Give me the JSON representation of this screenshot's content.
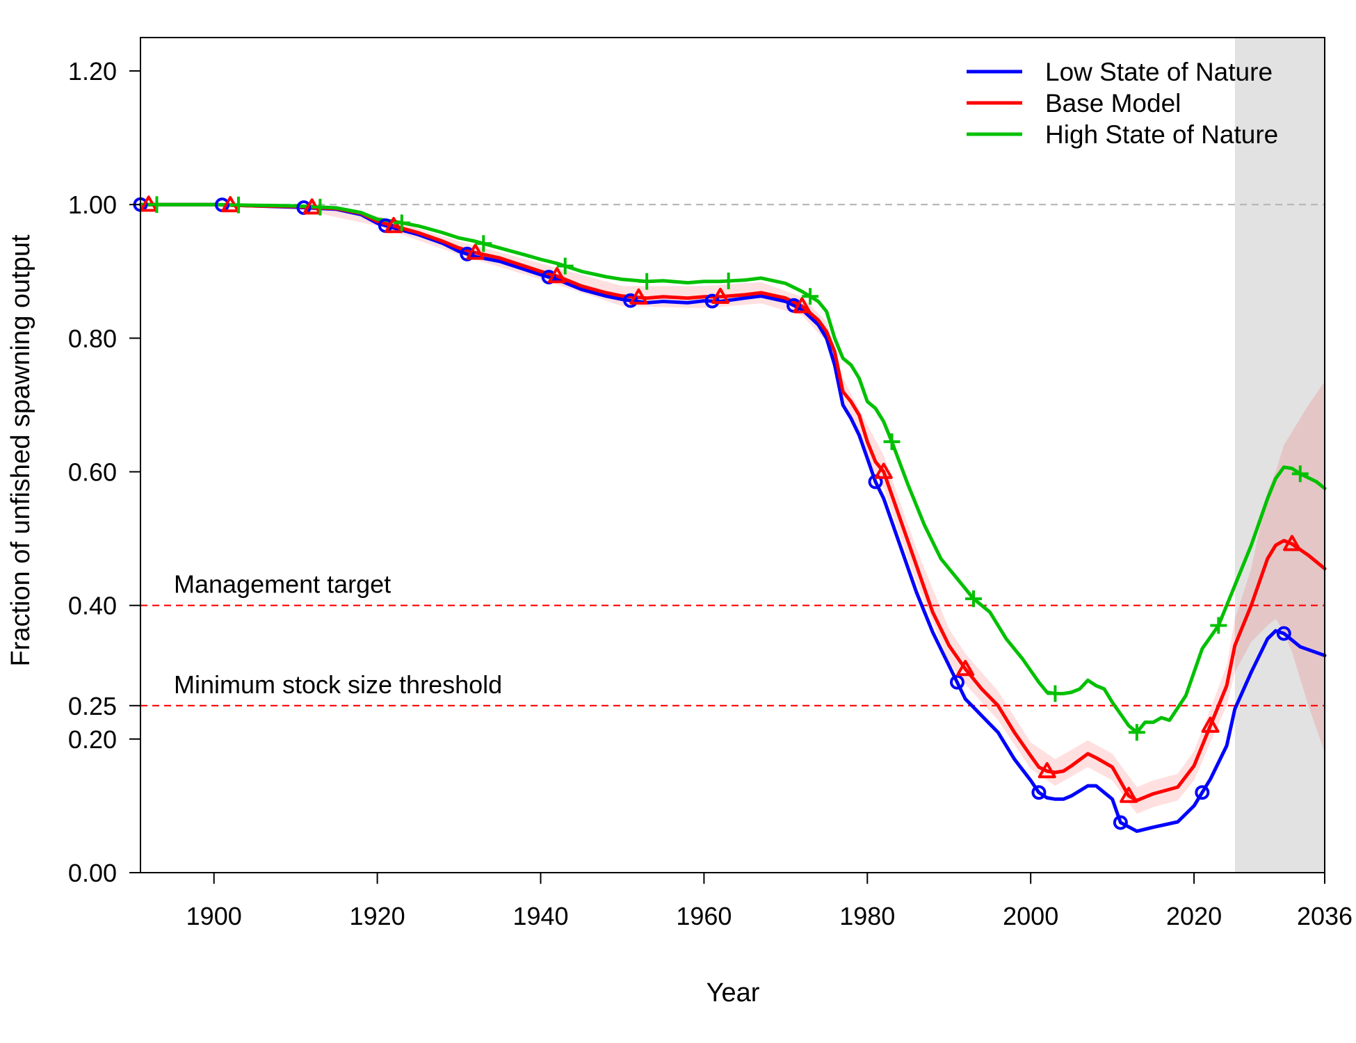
{
  "chart_data": {
    "type": "line",
    "title": "",
    "xlabel": "Year",
    "ylabel": "Fraction of unfished spawning output",
    "xlim": [
      1891,
      2036
    ],
    "ylim": [
      0,
      1.25
    ],
    "x_ticks": [
      {
        "value": 1900,
        "label": "1900"
      },
      {
        "value": 1920,
        "label": "1920"
      },
      {
        "value": 1940,
        "label": "1940"
      },
      {
        "value": 1960,
        "label": "1960"
      },
      {
        "value": 1980,
        "label": "1980"
      },
      {
        "value": 2000,
        "label": "2000"
      },
      {
        "value": 2020,
        "label": "2020"
      },
      {
        "value": 2036,
        "label": "2036"
      }
    ],
    "y_ticks": [
      {
        "value": 0.0,
        "label": "0.00"
      },
      {
        "value": 0.2,
        "label": "0.20"
      },
      {
        "value": 0.25,
        "label": "0.25"
      },
      {
        "value": 0.4,
        "label": "0.40"
      },
      {
        "value": 0.6,
        "label": "0.60"
      },
      {
        "value": 0.8,
        "label": "0.80"
      },
      {
        "value": 1.0,
        "label": "1.00"
      },
      {
        "value": 1.2,
        "label": "1.20"
      }
    ],
    "grid": false,
    "legend_position": "top-right",
    "forecast_shading": {
      "from": 2025,
      "to": 2036,
      "color": "#e2e2e2"
    },
    "reference_lines": [
      {
        "value": 1.0,
        "label": "",
        "color": "#b5b5b5"
      },
      {
        "value": 0.4,
        "label": "Management target",
        "color": "#ff0000"
      },
      {
        "value": 0.25,
        "label": "Minimum stock size threshold",
        "color": "#ff0000"
      }
    ],
    "series": [
      {
        "name": "Low State of Nature",
        "color": "#0000ff",
        "marker": "circle",
        "marker_years": [
          1891,
          1901,
          1911,
          1921,
          1931,
          1941,
          1951,
          1961,
          1971,
          1981,
          1991,
          2001,
          2011,
          2021,
          2031
        ],
        "points": [
          [
            1891,
            1.0
          ],
          [
            1895,
            1.0
          ],
          [
            1900,
            1.0
          ],
          [
            1905,
            0.998
          ],
          [
            1910,
            0.996
          ],
          [
            1915,
            0.993
          ],
          [
            1918,
            0.985
          ],
          [
            1920,
            0.972
          ],
          [
            1922,
            0.965
          ],
          [
            1925,
            0.955
          ],
          [
            1928,
            0.942
          ],
          [
            1930,
            0.93
          ],
          [
            1932,
            0.922
          ],
          [
            1935,
            0.915
          ],
          [
            1938,
            0.903
          ],
          [
            1940,
            0.895
          ],
          [
            1942,
            0.888
          ],
          [
            1945,
            0.873
          ],
          [
            1948,
            0.863
          ],
          [
            1950,
            0.858
          ],
          [
            1953,
            0.853
          ],
          [
            1955,
            0.855
          ],
          [
            1958,
            0.853
          ],
          [
            1960,
            0.856
          ],
          [
            1962,
            0.855
          ],
          [
            1965,
            0.86
          ],
          [
            1967,
            0.863
          ],
          [
            1970,
            0.855
          ],
          [
            1972,
            0.843
          ],
          [
            1974,
            0.82
          ],
          [
            1975,
            0.8
          ],
          [
            1976,
            0.76
          ],
          [
            1977,
            0.7
          ],
          [
            1978,
            0.68
          ],
          [
            1979,
            0.655
          ],
          [
            1980,
            0.62
          ],
          [
            1981,
            0.585
          ],
          [
            1982,
            0.56
          ],
          [
            1984,
            0.49
          ],
          [
            1986,
            0.42
          ],
          [
            1988,
            0.36
          ],
          [
            1990,
            0.31
          ],
          [
            1992,
            0.26
          ],
          [
            1994,
            0.235
          ],
          [
            1996,
            0.21
          ],
          [
            1998,
            0.17
          ],
          [
            2000,
            0.138
          ],
          [
            2001,
            0.12
          ],
          [
            2002,
            0.112
          ],
          [
            2003,
            0.11
          ],
          [
            2004,
            0.11
          ],
          [
            2005,
            0.115
          ],
          [
            2007,
            0.13
          ],
          [
            2008,
            0.13
          ],
          [
            2010,
            0.11
          ],
          [
            2011,
            0.075
          ],
          [
            2013,
            0.062
          ],
          [
            2015,
            0.068
          ],
          [
            2018,
            0.076
          ],
          [
            2020,
            0.1
          ],
          [
            2022,
            0.14
          ],
          [
            2024,
            0.19
          ],
          [
            2025,
            0.245
          ],
          [
            2027,
            0.3
          ],
          [
            2029,
            0.35
          ],
          [
            2030,
            0.362
          ],
          [
            2031,
            0.358
          ],
          [
            2033,
            0.338
          ],
          [
            2036,
            0.325
          ]
        ]
      },
      {
        "name": "Base Model",
        "color": "#ff0000",
        "marker": "triangle",
        "marker_years": [
          1892,
          1902,
          1912,
          1922,
          1932,
          1942,
          1952,
          1962,
          1972,
          1982,
          1992,
          2002,
          2012,
          2022,
          2032
        ],
        "points": [
          [
            1891,
            1.0
          ],
          [
            1895,
            1.0
          ],
          [
            1900,
            1.0
          ],
          [
            1905,
            0.998
          ],
          [
            1910,
            0.997
          ],
          [
            1915,
            0.994
          ],
          [
            1918,
            0.987
          ],
          [
            1920,
            0.975
          ],
          [
            1922,
            0.968
          ],
          [
            1925,
            0.958
          ],
          [
            1928,
            0.945
          ],
          [
            1930,
            0.935
          ],
          [
            1932,
            0.928
          ],
          [
            1935,
            0.92
          ],
          [
            1938,
            0.908
          ],
          [
            1940,
            0.9
          ],
          [
            1942,
            0.893
          ],
          [
            1945,
            0.878
          ],
          [
            1948,
            0.868
          ],
          [
            1950,
            0.863
          ],
          [
            1953,
            0.86
          ],
          [
            1955,
            0.862
          ],
          [
            1958,
            0.86
          ],
          [
            1960,
            0.862
          ],
          [
            1962,
            0.862
          ],
          [
            1965,
            0.865
          ],
          [
            1967,
            0.868
          ],
          [
            1970,
            0.86
          ],
          [
            1972,
            0.848
          ],
          [
            1974,
            0.827
          ],
          [
            1975,
            0.81
          ],
          [
            1976,
            0.78
          ],
          [
            1977,
            0.72
          ],
          [
            1978,
            0.705
          ],
          [
            1979,
            0.685
          ],
          [
            1980,
            0.645
          ],
          [
            1981,
            0.615
          ],
          [
            1982,
            0.6
          ],
          [
            1984,
            0.53
          ],
          [
            1986,
            0.46
          ],
          [
            1988,
            0.39
          ],
          [
            1990,
            0.34
          ],
          [
            1992,
            0.305
          ],
          [
            1994,
            0.275
          ],
          [
            1996,
            0.25
          ],
          [
            1998,
            0.21
          ],
          [
            2000,
            0.175
          ],
          [
            2001,
            0.158
          ],
          [
            2002,
            0.152
          ],
          [
            2003,
            0.15
          ],
          [
            2004,
            0.152
          ],
          [
            2005,
            0.16
          ],
          [
            2007,
            0.178
          ],
          [
            2008,
            0.172
          ],
          [
            2010,
            0.158
          ],
          [
            2012,
            0.115
          ],
          [
            2013,
            0.108
          ],
          [
            2015,
            0.118
          ],
          [
            2018,
            0.128
          ],
          [
            2020,
            0.16
          ],
          [
            2022,
            0.22
          ],
          [
            2024,
            0.28
          ],
          [
            2025,
            0.34
          ],
          [
            2027,
            0.4
          ],
          [
            2029,
            0.47
          ],
          [
            2030,
            0.49
          ],
          [
            2031,
            0.497
          ],
          [
            2032,
            0.492
          ],
          [
            2034,
            0.475
          ],
          [
            2036,
            0.455
          ]
        ],
        "band": [
          [
            1891,
            1.0,
            1.0
          ],
          [
            1900,
            0.998,
            1.002
          ],
          [
            1910,
            0.994,
            1.0
          ],
          [
            1920,
            0.968,
            0.983
          ],
          [
            1930,
            0.925,
            0.945
          ],
          [
            1940,
            0.888,
            0.912
          ],
          [
            1950,
            0.848,
            0.878
          ],
          [
            1960,
            0.845,
            0.878
          ],
          [
            1967,
            0.852,
            0.884
          ],
          [
            1972,
            0.834,
            0.862
          ],
          [
            1975,
            0.795,
            0.825
          ],
          [
            1977,
            0.7,
            0.74
          ],
          [
            1980,
            0.62,
            0.67
          ],
          [
            1982,
            0.575,
            0.625
          ],
          [
            1986,
            0.435,
            0.485
          ],
          [
            1990,
            0.315,
            0.365
          ],
          [
            1992,
            0.282,
            0.328
          ],
          [
            1996,
            0.228,
            0.272
          ],
          [
            2000,
            0.155,
            0.195
          ],
          [
            2003,
            0.13,
            0.17
          ],
          [
            2007,
            0.158,
            0.198
          ],
          [
            2010,
            0.138,
            0.178
          ],
          [
            2013,
            0.088,
            0.128
          ],
          [
            2015,
            0.098,
            0.138
          ],
          [
            2018,
            0.108,
            0.148
          ],
          [
            2020,
            0.138,
            0.182
          ],
          [
            2022,
            0.195,
            0.245
          ],
          [
            2024,
            0.25,
            0.31
          ],
          [
            2025,
            0.3,
            0.38
          ],
          [
            2027,
            0.345,
            0.455
          ],
          [
            2029,
            0.37,
            0.57
          ],
          [
            2030,
            0.38,
            0.6
          ],
          [
            2031,
            0.36,
            0.64
          ],
          [
            2032,
            0.33,
            0.66
          ],
          [
            2034,
            0.25,
            0.7
          ],
          [
            2036,
            0.18,
            0.735
          ]
        ]
      },
      {
        "name": "High State of Nature",
        "color": "#00c000",
        "marker": "plus",
        "marker_years": [
          1893,
          1903,
          1913,
          1923,
          1933,
          1943,
          1953,
          1963,
          1973,
          1983,
          1993,
          2003,
          2013,
          2023,
          2033
        ],
        "points": [
          [
            1891,
            1.0
          ],
          [
            1895,
            1.0
          ],
          [
            1900,
            1.0
          ],
          [
            1905,
            0.999
          ],
          [
            1910,
            0.998
          ],
          [
            1915,
            0.995
          ],
          [
            1918,
            0.988
          ],
          [
            1920,
            0.978
          ],
          [
            1922,
            0.975
          ],
          [
            1925,
            0.968
          ],
          [
            1928,
            0.958
          ],
          [
            1930,
            0.95
          ],
          [
            1932,
            0.945
          ],
          [
            1935,
            0.935
          ],
          [
            1938,
            0.925
          ],
          [
            1940,
            0.918
          ],
          [
            1942,
            0.912
          ],
          [
            1945,
            0.9
          ],
          [
            1948,
            0.892
          ],
          [
            1950,
            0.888
          ],
          [
            1953,
            0.885
          ],
          [
            1955,
            0.886
          ],
          [
            1958,
            0.883
          ],
          [
            1960,
            0.885
          ],
          [
            1962,
            0.885
          ],
          [
            1965,
            0.887
          ],
          [
            1967,
            0.89
          ],
          [
            1970,
            0.882
          ],
          [
            1972,
            0.87
          ],
          [
            1974,
            0.855
          ],
          [
            1975,
            0.84
          ],
          [
            1976,
            0.8
          ],
          [
            1977,
            0.77
          ],
          [
            1978,
            0.76
          ],
          [
            1979,
            0.74
          ],
          [
            1980,
            0.705
          ],
          [
            1981,
            0.695
          ],
          [
            1982,
            0.675
          ],
          [
            1983,
            0.645
          ],
          [
            1985,
            0.58
          ],
          [
            1987,
            0.52
          ],
          [
            1989,
            0.47
          ],
          [
            1991,
            0.44
          ],
          [
            1993,
            0.41
          ],
          [
            1995,
            0.39
          ],
          [
            1997,
            0.35
          ],
          [
            1999,
            0.32
          ],
          [
            2001,
            0.285
          ],
          [
            2002,
            0.27
          ],
          [
            2003,
            0.268
          ],
          [
            2004,
            0.268
          ],
          [
            2005,
            0.27
          ],
          [
            2006,
            0.275
          ],
          [
            2007,
            0.288
          ],
          [
            2008,
            0.28
          ],
          [
            2009,
            0.275
          ],
          [
            2010,
            0.255
          ],
          [
            2012,
            0.22
          ],
          [
            2013,
            0.21
          ],
          [
            2014,
            0.225
          ],
          [
            2015,
            0.225
          ],
          [
            2016,
            0.232
          ],
          [
            2017,
            0.228
          ],
          [
            2019,
            0.265
          ],
          [
            2021,
            0.335
          ],
          [
            2023,
            0.37
          ],
          [
            2025,
            0.43
          ],
          [
            2027,
            0.49
          ],
          [
            2029,
            0.56
          ],
          [
            2030,
            0.59
          ],
          [
            2031,
            0.607
          ],
          [
            2032,
            0.605
          ],
          [
            2033,
            0.597
          ],
          [
            2035,
            0.585
          ],
          [
            2036,
            0.575
          ]
        ]
      }
    ]
  }
}
